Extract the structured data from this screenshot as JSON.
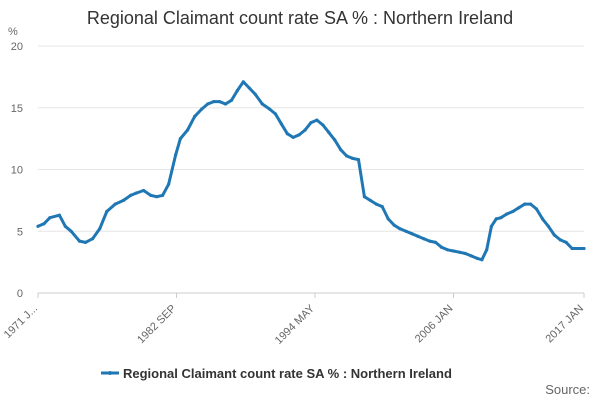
{
  "chart_data": {
    "type": "line",
    "title": "Regional Claimant count rate SA % : Northern Ireland",
    "ylabel": "%",
    "xlabel": "",
    "ylim": [
      0,
      20
    ],
    "yticks": [
      0,
      5,
      10,
      15,
      20
    ],
    "xlim": [
      1971.0,
      2017.0
    ],
    "xtick_labels": [
      {
        "label": "1971 J...",
        "x": 1971.0
      },
      {
        "label": "1982 SEP",
        "x": 1982.67
      },
      {
        "label": "1994 MAY",
        "x": 1994.33
      },
      {
        "label": "2006 JAN",
        "x": 2006.0
      },
      {
        "label": "2017 JAN",
        "x": 2017.0
      }
    ],
    "series": [
      {
        "name": "Regional Claimant count rate SA % : Northern Ireland",
        "color": "#1f77b4",
        "x": [
          1971.0,
          1971.5,
          1972.0,
          1972.8,
          1973.3,
          1973.8,
          1974.5,
          1975.0,
          1975.6,
          1976.2,
          1976.8,
          1977.5,
          1978.2,
          1978.8,
          1979.3,
          1979.9,
          1980.5,
          1981.0,
          1981.5,
          1982.0,
          1982.6,
          1983.0,
          1983.6,
          1984.2,
          1984.8,
          1985.3,
          1985.8,
          1986.3,
          1986.8,
          1987.3,
          1987.8,
          1988.3,
          1988.8,
          1989.3,
          1989.9,
          1990.5,
          1991.0,
          1991.5,
          1992.0,
          1992.5,
          1993.0,
          1993.5,
          1994.0,
          1994.5,
          1995.0,
          1995.5,
          1996.0,
          1996.5,
          1997.0,
          1997.5,
          1998.0,
          1998.5,
          1999.0,
          1999.5,
          2000.0,
          2000.5,
          2001.0,
          2001.5,
          2002.0,
          2002.5,
          2003.0,
          2003.5,
          2004.0,
          2004.5,
          2005.0,
          2005.5,
          2006.0,
          2006.5,
          2007.0,
          2007.5,
          2008.0,
          2008.4,
          2008.8,
          2009.2,
          2009.6,
          2010.0,
          2010.5,
          2011.0,
          2011.5,
          2012.0,
          2012.5,
          2013.0,
          2013.5,
          2014.0,
          2014.5,
          2015.0,
          2015.5,
          2016.0,
          2016.5,
          2017.0
        ],
        "values": [
          5.4,
          5.6,
          6.1,
          6.3,
          5.4,
          5.0,
          4.2,
          4.1,
          4.4,
          5.2,
          6.6,
          7.2,
          7.5,
          7.9,
          8.1,
          8.3,
          7.9,
          7.8,
          7.9,
          8.8,
          11.2,
          12.5,
          13.2,
          14.3,
          14.9,
          15.3,
          15.5,
          15.5,
          15.3,
          15.6,
          16.4,
          17.1,
          16.6,
          16.1,
          15.3,
          14.9,
          14.5,
          13.7,
          12.9,
          12.6,
          12.8,
          13.2,
          13.8,
          14.0,
          13.6,
          13.0,
          12.4,
          11.6,
          11.1,
          10.9,
          10.8,
          7.8,
          7.5,
          7.2,
          7.0,
          6.0,
          5.5,
          5.2,
          5.0,
          4.8,
          4.6,
          4.4,
          4.2,
          4.1,
          3.7,
          3.5,
          3.4,
          3.3,
          3.2,
          3.0,
          2.8,
          2.7,
          3.5,
          5.4,
          6.0,
          6.1,
          6.4,
          6.6,
          6.9,
          7.2,
          7.2,
          6.8,
          6.0,
          5.4,
          4.7,
          4.3,
          4.1,
          3.6,
          3.6,
          3.6
        ]
      }
    ]
  },
  "legend": {
    "label": "Regional Claimant count rate SA % : Northern Ireland"
  },
  "source": {
    "label": "Source:"
  }
}
